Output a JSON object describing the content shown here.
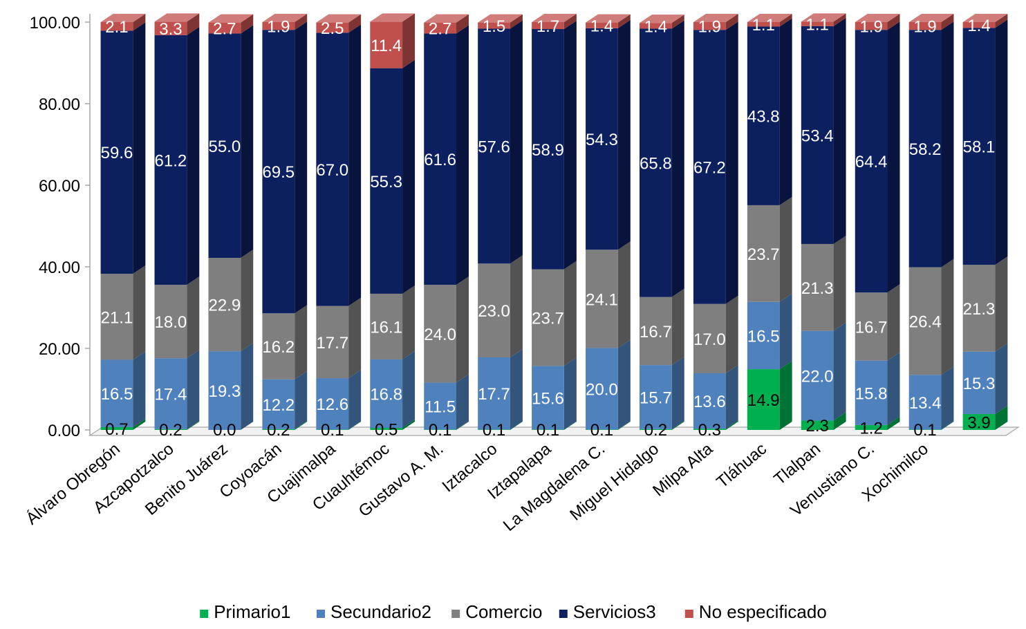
{
  "chart_data": {
    "type": "bar",
    "stacked": true,
    "style": "3d-stacked-column-100",
    "categories": [
      "Álvaro Obregón",
      "Azcapotzalco",
      "Benito Juárez",
      "Coyoacán",
      "Cuajimalpa",
      "Cuauhtémoc",
      "Gustavo A. M.",
      "Iztacalco",
      "Iztapalapa",
      "La Magdalena C.",
      "Miguel Hidalgo",
      "Milpa Alta",
      "Tláhuac",
      "Tlalpan",
      "Venustiano C.",
      "Xochimilco",
      ""
    ],
    "series": [
      {
        "name": "Primario1",
        "color": "#00b050",
        "values": [
          0.7,
          0.2,
          0.0,
          0.2,
          0.1,
          0.5,
          0.1,
          0.1,
          0.1,
          0.1,
          0.2,
          0.3,
          14.9,
          2.3,
          1.2,
          0.1,
          3.9
        ],
        "labels": [
          "0.7",
          "0.2",
          "0.0",
          "0.2",
          "0.1",
          "0.5",
          "0.1",
          "0.1",
          "0.1",
          "0.1",
          "0.2",
          "0.3",
          "14.9",
          "2.3",
          "1.2",
          "0.1",
          "3.9"
        ]
      },
      {
        "name": "Secundario2",
        "color": "#4f81bd",
        "values": [
          16.5,
          17.4,
          19.3,
          12.2,
          12.6,
          16.8,
          11.5,
          17.7,
          15.6,
          20.0,
          15.7,
          13.6,
          16.5,
          22.0,
          15.8,
          13.4,
          15.3
        ],
        "labels": [
          "16.5",
          "17.4",
          "19.3",
          "12.2",
          "12.6",
          "16.8",
          "11.5",
          "17.7",
          "15.6",
          "20.0",
          "15.7",
          "13.6",
          "16.5",
          "22.0",
          "15.8",
          "13.4",
          "15.3"
        ]
      },
      {
        "name": "Comercio",
        "color": "#7f7f7f",
        "values": [
          21.1,
          18.0,
          22.9,
          16.2,
          17.7,
          16.1,
          24.0,
          23.0,
          23.7,
          24.1,
          16.7,
          17.0,
          23.7,
          21.3,
          16.7,
          26.4,
          21.3
        ],
        "labels": [
          "21.1",
          "18.0",
          "22.9",
          "16.2",
          "17.7",
          "16.1",
          "24.0",
          "23.0",
          "23.7",
          "24.1",
          "16.7",
          "17.0",
          "23.7",
          "21.3",
          "16.7",
          "26.4",
          "21.3"
        ]
      },
      {
        "name": "Servicios3",
        "color": "#0c1f5f",
        "values": [
          59.6,
          61.2,
          55.0,
          69.5,
          67.0,
          55.3,
          61.6,
          57.6,
          58.9,
          54.3,
          65.8,
          67.2,
          43.8,
          53.4,
          64.4,
          58.2,
          58.1
        ],
        "labels": [
          "59.6",
          "61.2",
          "55.0",
          "69.5",
          "67.0",
          "55.3",
          "61.6",
          "57.6",
          "58.9",
          "54.3",
          "65.8",
          "67.2",
          "43.8",
          "53.4",
          "64.4",
          "58.2",
          "58.1"
        ]
      },
      {
        "name": "No especificado",
        "color": "#c0504d",
        "values": [
          2.1,
          3.3,
          2.7,
          1.9,
          2.5,
          11.4,
          2.7,
          1.5,
          1.7,
          1.4,
          1.4,
          1.9,
          1.1,
          1.1,
          1.9,
          1.9,
          1.4
        ],
        "labels": [
          "2.1",
          "3.3",
          "2.7",
          "1.9",
          "2.5",
          "11.4",
          "2.7",
          "1.5",
          "1.7",
          "1.4",
          "1.4",
          "1.9",
          "1.1",
          "1.1",
          "1.9",
          "1.9",
          "1.4"
        ]
      }
    ],
    "yticks": [
      "0.00",
      "20.00",
      "40.00",
      "60.00",
      "80.00",
      "100.00"
    ],
    "ylim": [
      0,
      100
    ],
    "grid": false,
    "legend_position": "bottom",
    "title": "",
    "xlabel": "",
    "ylabel": ""
  }
}
